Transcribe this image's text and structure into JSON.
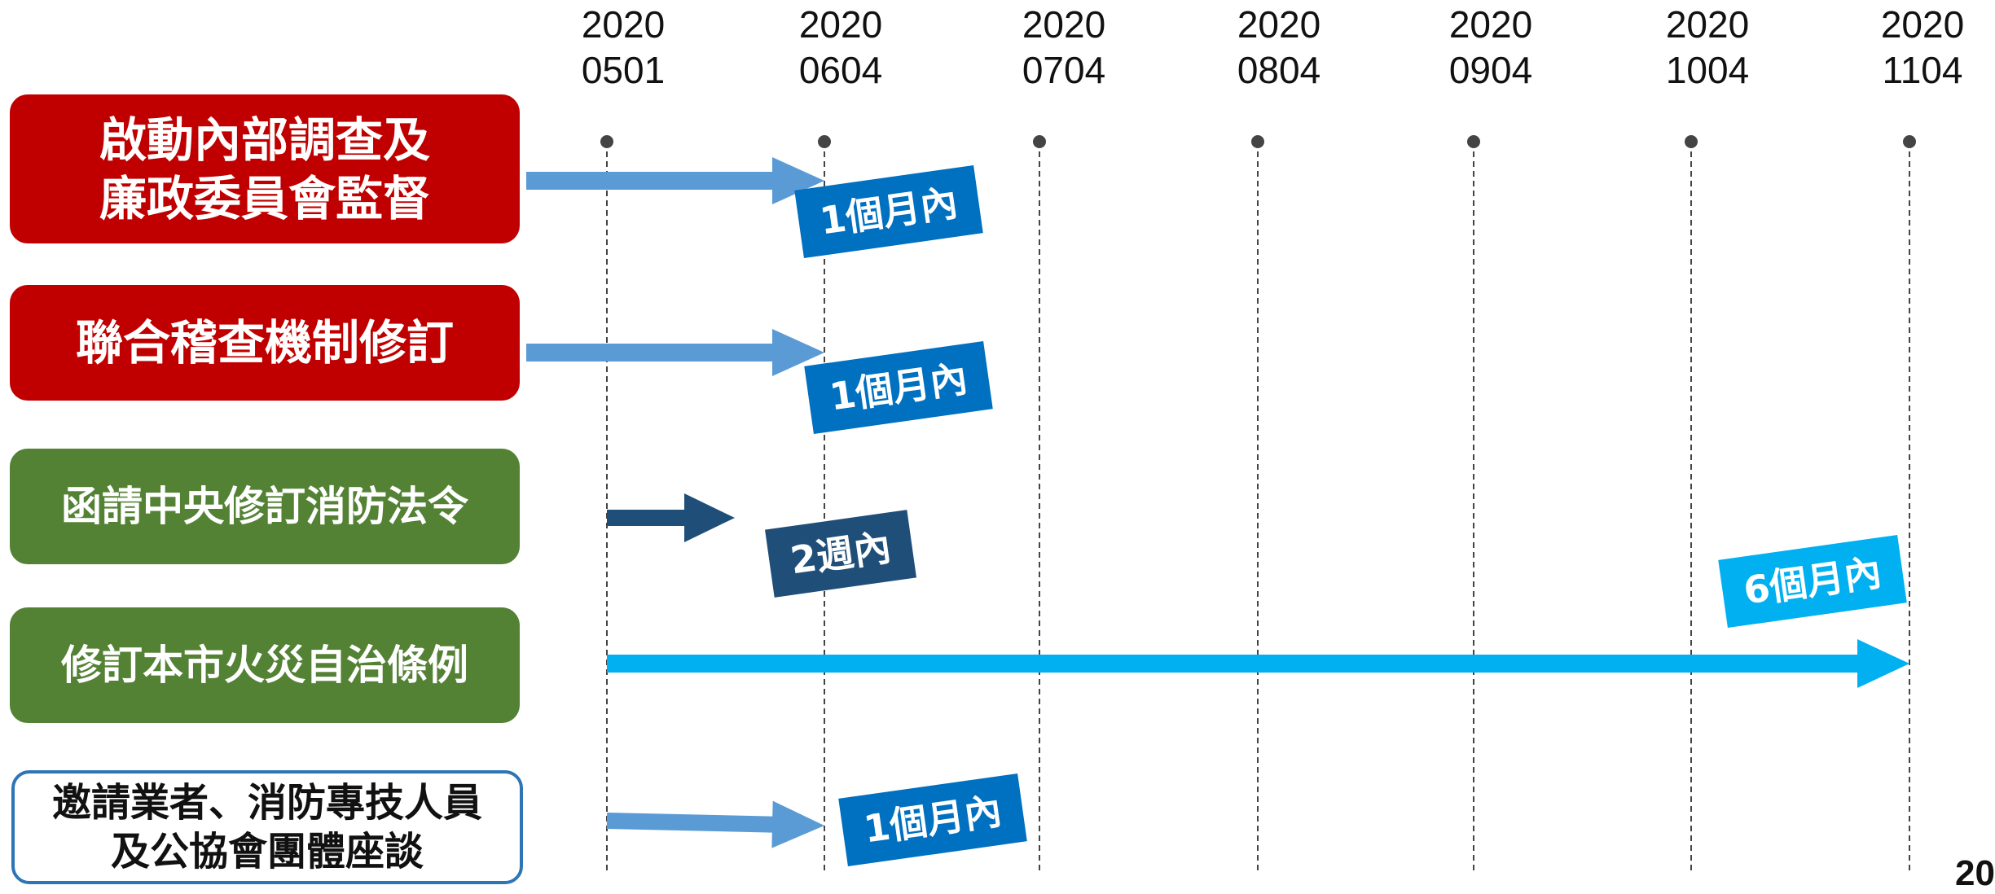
{
  "colors": {
    "red": "#c00000",
    "green": "#548235",
    "outline_blue": "#2e75b6",
    "arrow_light": "#5b9bd5",
    "arrow_dark": "#1f4e79",
    "arrow_cyan": "#00b0f0",
    "tag_blue": "#0070c0",
    "tag_dark": "#1f4e79",
    "tag_cyan": "#00b0f0",
    "gridline": "#444444"
  },
  "dates": [
    {
      "year": "2020",
      "day": "0501"
    },
    {
      "year": "2020",
      "day": "0604"
    },
    {
      "year": "2020",
      "day": "0704"
    },
    {
      "year": "2020",
      "day": "0804"
    },
    {
      "year": "2020",
      "day": "0904"
    },
    {
      "year": "2020",
      "day": "1004"
    },
    {
      "year": "2020",
      "day": "1104"
    }
  ],
  "tasks": [
    {
      "label": "啟動內部調查及\n廉政委員會監督",
      "tag": "1個月內"
    },
    {
      "label": "聯合稽查機制修訂",
      "tag": "1個月內"
    },
    {
      "label": "函請中央修訂消防法令",
      "tag": "2週內"
    },
    {
      "label": "修訂本市火災自治條例",
      "tag": "6個月內"
    },
    {
      "label": "邀請業者、消防專技人員\n及公協會團體座談",
      "tag": "1個月內"
    }
  ],
  "page_number": "20"
}
